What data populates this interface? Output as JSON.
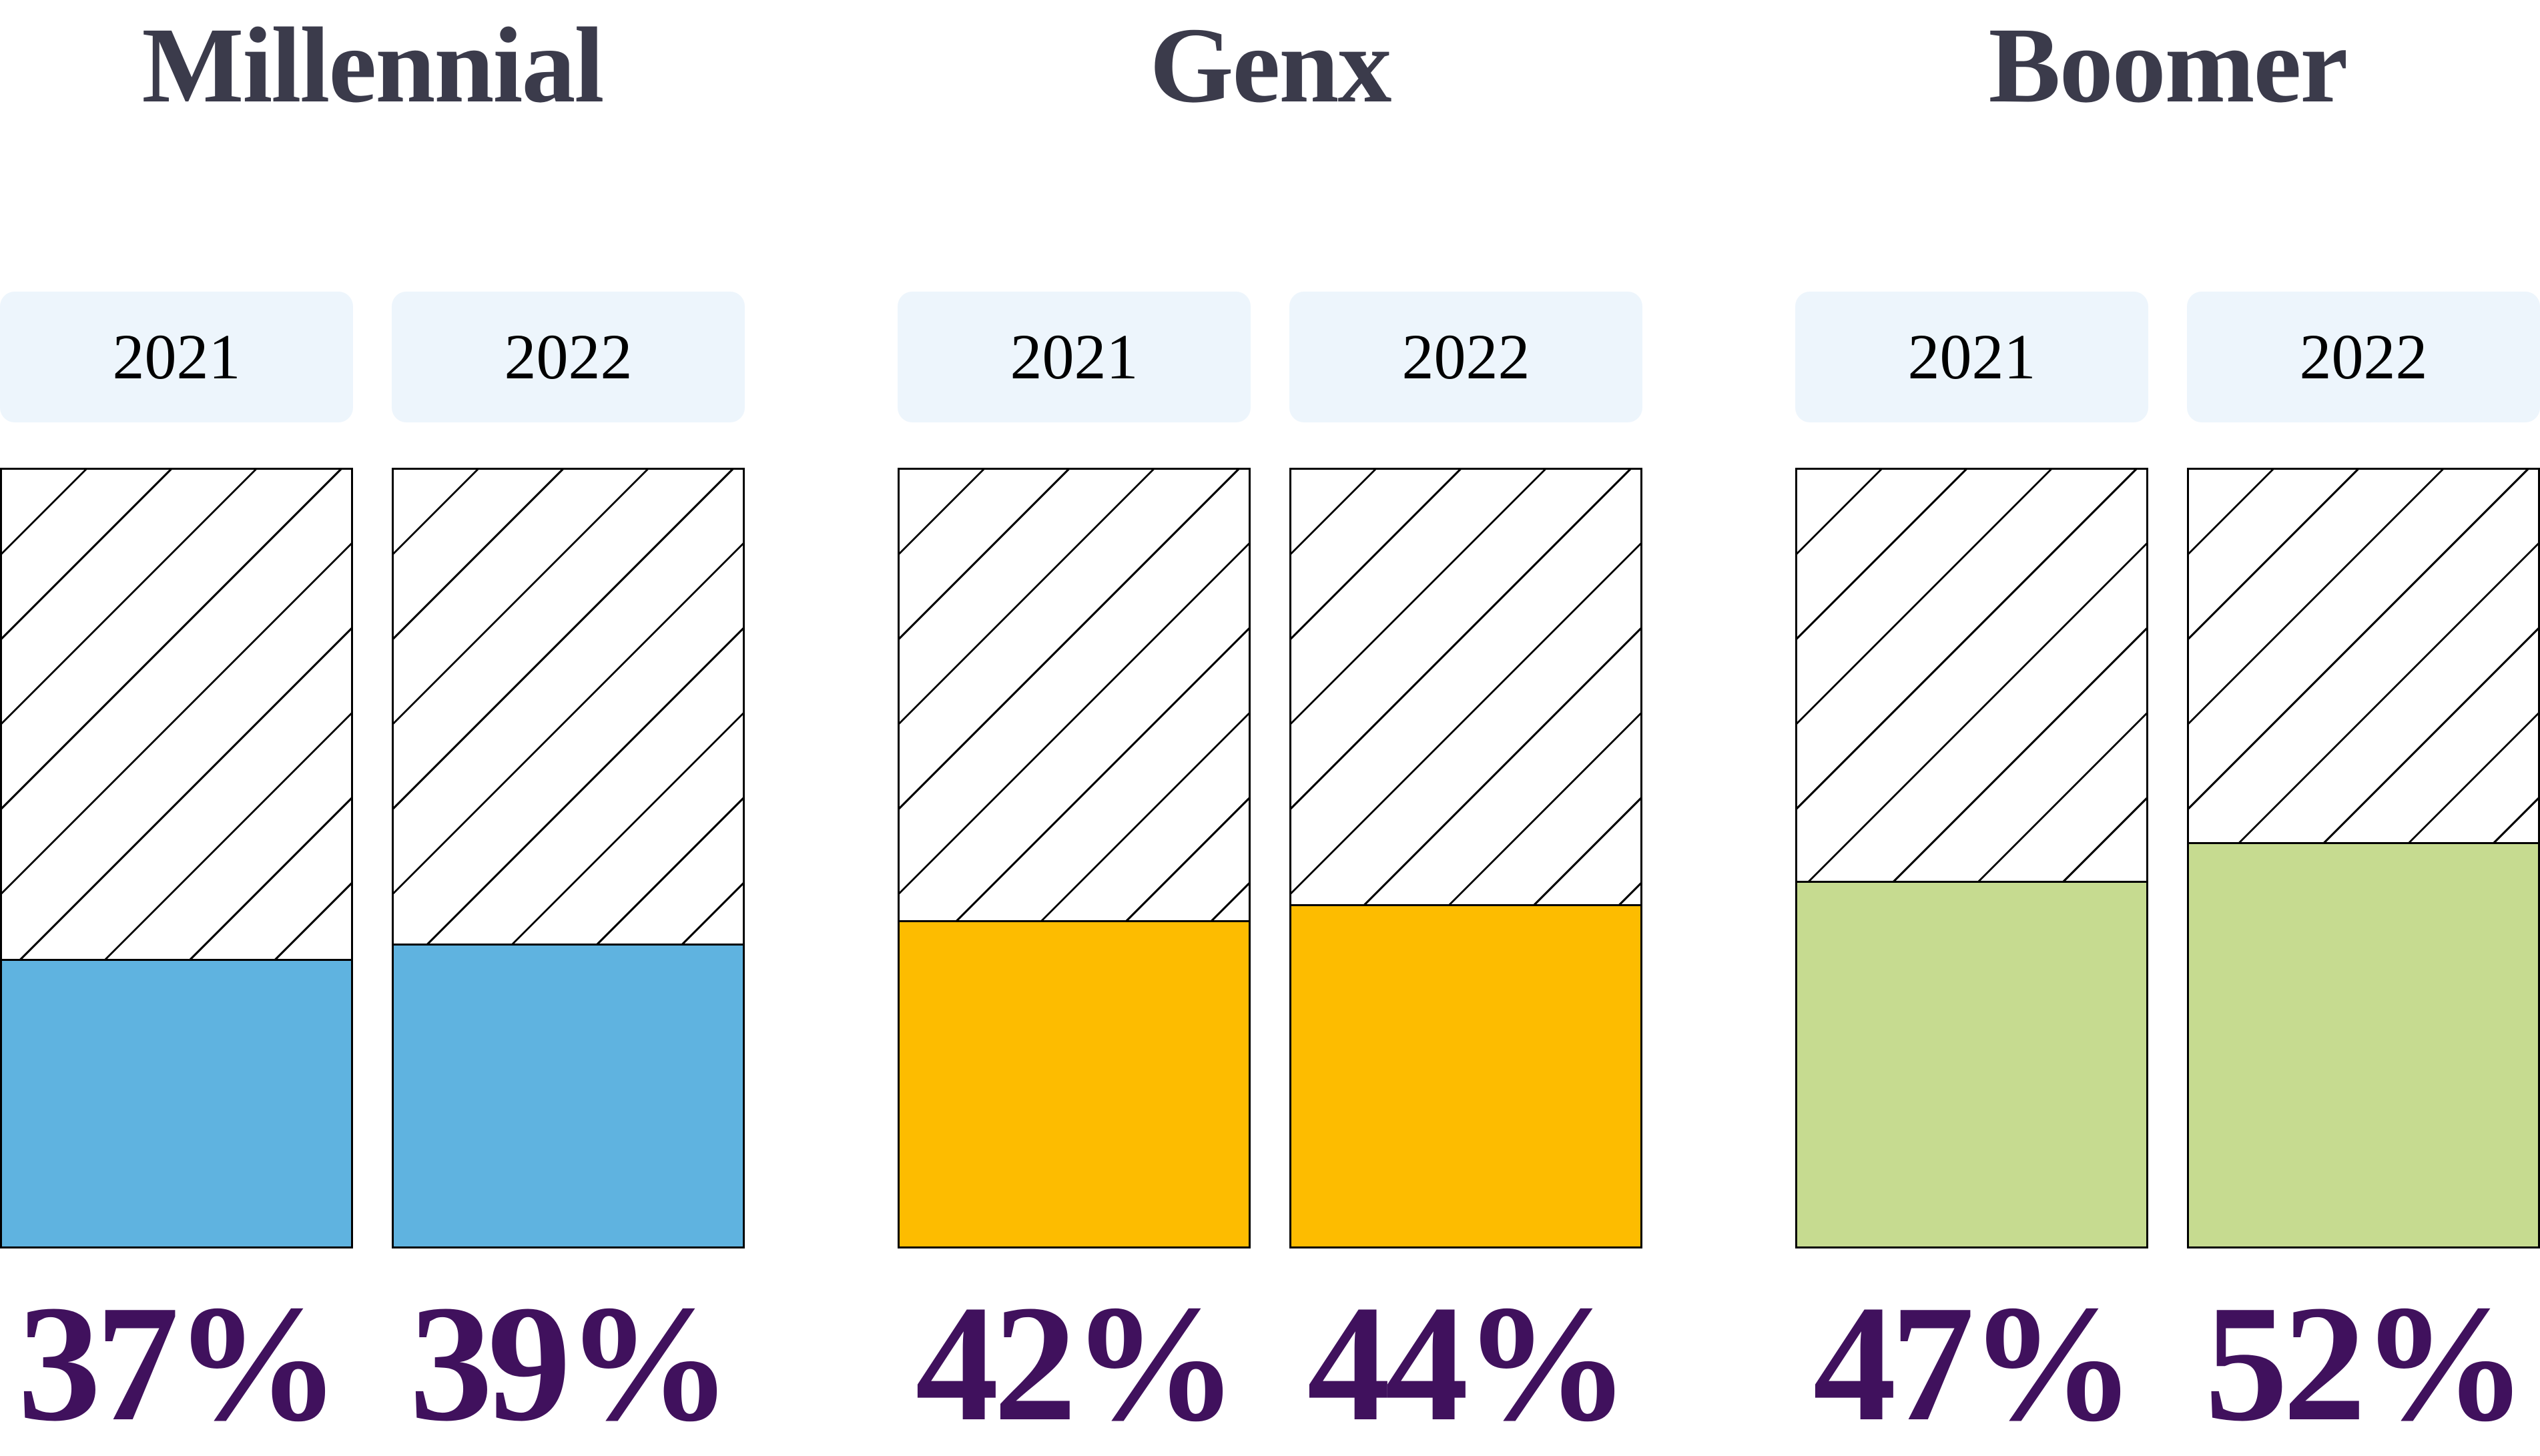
{
  "chart_data": {
    "type": "bar",
    "categories": [
      "Millennial",
      "Genx",
      "Boomer"
    ],
    "series": [
      {
        "name": "2021",
        "values": [
          37,
          42,
          47
        ]
      },
      {
        "name": "2022",
        "values": [
          39,
          44,
          52
        ]
      }
    ],
    "unit": "%",
    "ylim": [
      0,
      100
    ],
    "grid": false,
    "legend": "none",
    "remainder_style": "diagonal-hatch-to-100-percent",
    "value_label_position": "below-bar"
  },
  "groups": [
    {
      "title": "Millennial",
      "fill_color": "#5FB3E0",
      "bars": [
        {
          "year": "2021",
          "value": 37,
          "label": "37%"
        },
        {
          "year": "2022",
          "value": 39,
          "label": "39%"
        }
      ]
    },
    {
      "title": "Genx",
      "fill_color": "#FDBC00",
      "bars": [
        {
          "year": "2021",
          "value": 42,
          "label": "42%"
        },
        {
          "year": "2022",
          "value": 44,
          "label": "44%"
        }
      ]
    },
    {
      "title": "Boomer",
      "fill_color": "#C6DB90",
      "bars": [
        {
          "year": "2021",
          "value": 47,
          "label": "47%"
        },
        {
          "year": "2022",
          "value": 52,
          "label": "52%"
        }
      ]
    }
  ],
  "colors": {
    "background": "#FFFFFF",
    "title_text": "#3B3B4B",
    "chip_background": "#EDF5FC",
    "chip_text": "#000000",
    "percent_text": "#40115D",
    "bar_border": "#000000",
    "hatch_line": "#000000",
    "fill_millennial": "#5FB3E0",
    "fill_genx": "#FDBC00",
    "fill_boomer": "#C6DB90"
  }
}
